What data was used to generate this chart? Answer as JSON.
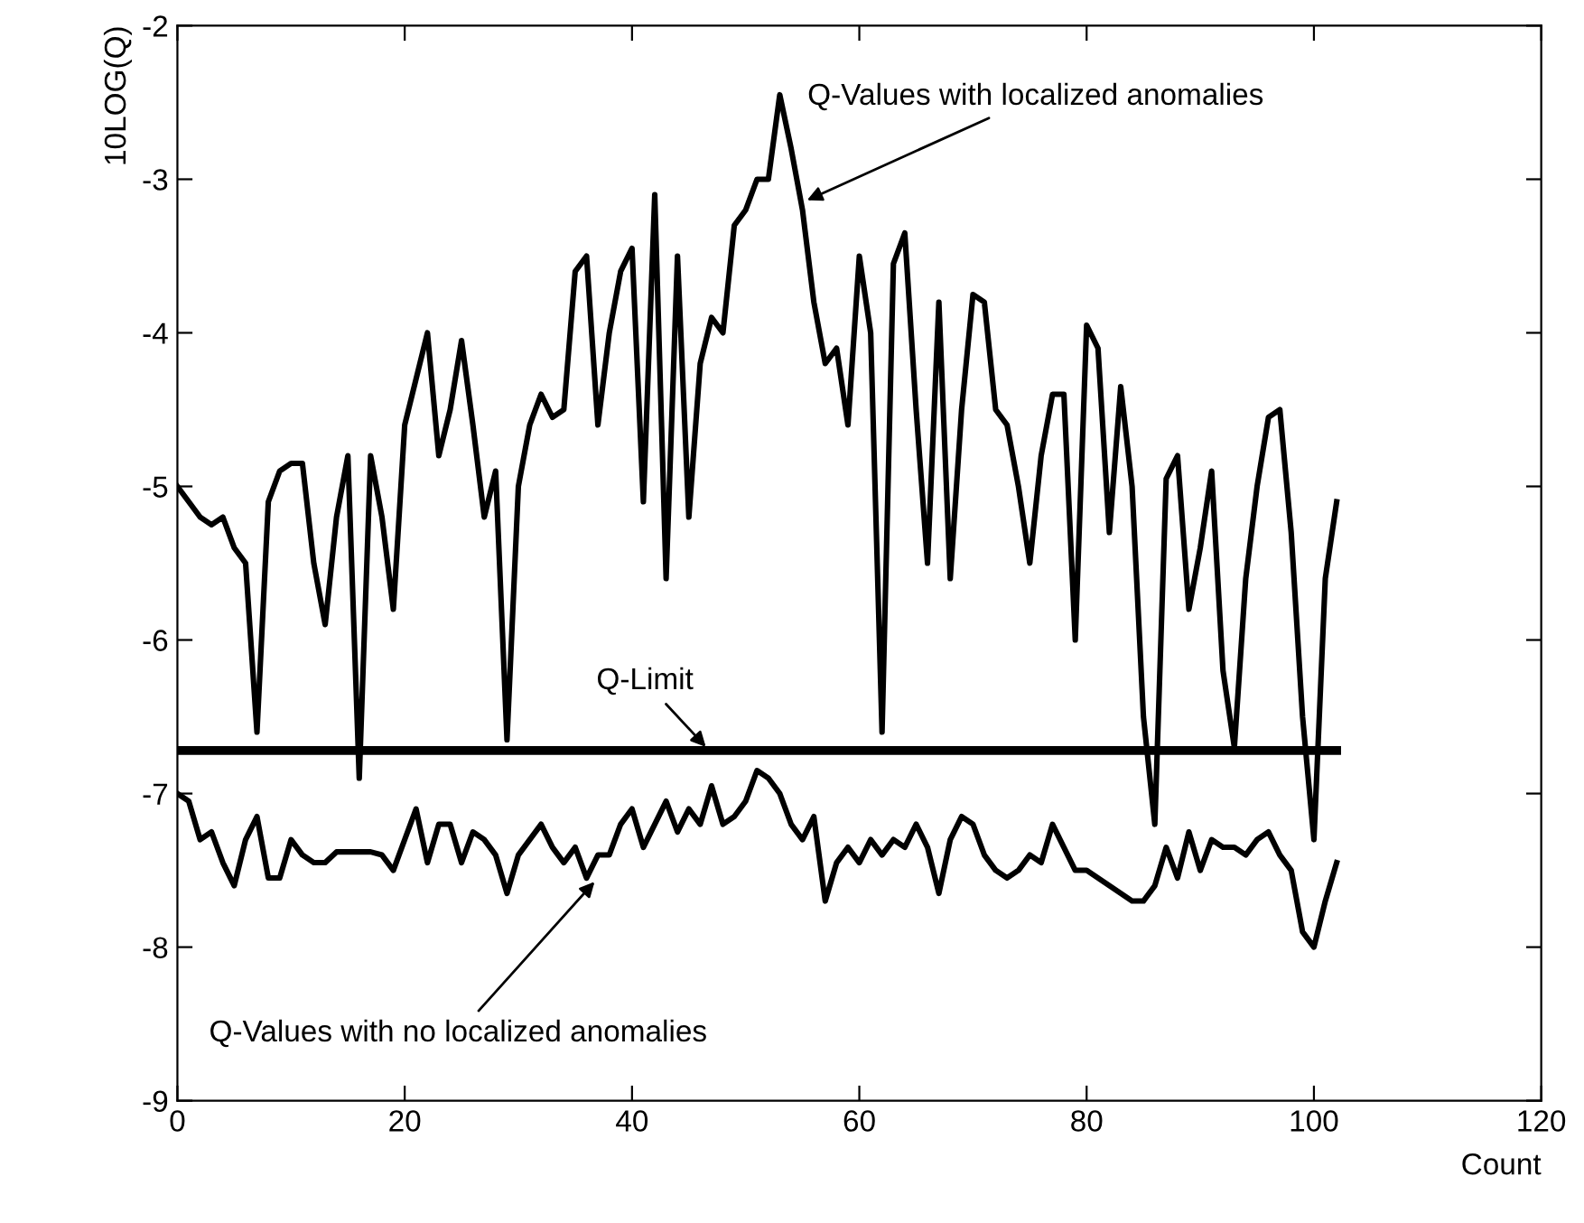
{
  "chart_data": {
    "type": "line",
    "xlabel": "Count",
    "ylabel": "10LOG(Q)",
    "x": [
      0,
      1,
      2,
      3,
      4,
      5,
      6,
      7,
      8,
      9,
      10,
      11,
      12,
      13,
      14,
      15,
      16,
      17,
      18,
      19,
      20,
      21,
      22,
      23,
      24,
      25,
      26,
      27,
      28,
      29,
      30,
      31,
      32,
      33,
      34,
      35,
      36,
      37,
      38,
      39,
      40,
      41,
      42,
      43,
      44,
      45,
      46,
      47,
      48,
      49,
      50,
      51,
      52,
      53,
      54,
      55,
      56,
      57,
      58,
      59,
      60,
      61,
      62,
      63,
      64,
      65,
      66,
      67,
      68,
      69,
      70,
      71,
      72,
      73,
      74,
      75,
      76,
      77,
      78,
      79,
      80,
      81,
      82,
      83,
      84,
      85,
      86,
      87,
      88,
      89,
      90,
      91,
      92,
      93,
      94,
      95,
      96,
      97,
      98,
      99,
      100,
      101,
      102
    ],
    "series": [
      {
        "color": "#000000",
        "values": [
          -5.0,
          -5.1,
          -5.2,
          -5.25,
          -5.2,
          -5.4,
          -5.5,
          -6.6,
          -5.1,
          -4.9,
          -4.85,
          -4.85,
          -5.5,
          -5.9,
          -5.2,
          -4.8,
          -6.9,
          -4.8,
          -5.2,
          -5.8,
          -4.6,
          -4.3,
          -4.0,
          -4.8,
          -4.5,
          -4.05,
          -4.6,
          -5.2,
          -4.9,
          -6.65,
          -5.0,
          -4.6,
          -4.4,
          -4.55,
          -4.5,
          -3.6,
          -3.5,
          -4.6,
          -4.0,
          -3.6,
          -3.45,
          -5.1,
          -3.1,
          -5.6,
          -3.5,
          -5.2,
          -4.2,
          -3.9,
          -4.0,
          -3.3,
          -3.2,
          -3.0,
          -3.0,
          -2.45,
          -2.8,
          -3.2,
          -3.8,
          -4.2,
          -4.1,
          -4.6,
          -3.5,
          -4.0,
          -6.6,
          -3.55,
          -3.35,
          -4.5,
          -5.5,
          -3.8,
          -5.6,
          -4.5,
          -3.75,
          -3.8,
          -4.5,
          -4.6,
          -5.0,
          -5.5,
          -4.8,
          -4.4,
          -4.4,
          -6.0,
          -3.95,
          -4.1,
          -5.3,
          -4.35,
          -5.0,
          -6.5,
          -7.2,
          -4.95,
          -4.8,
          -5.8,
          -5.4,
          -4.9,
          -6.2,
          -6.7,
          -5.6,
          -5.0,
          -4.55,
          -4.5,
          -5.3,
          -6.5,
          -7.3,
          -5.6,
          -5.1
        ]
      },
      {
        "color": "#000000",
        "values": [
          -7.0,
          -7.05,
          -7.3,
          -7.25,
          -7.45,
          -7.6,
          -7.3,
          -7.15,
          -7.55,
          -7.55,
          -7.3,
          -7.4,
          -7.45,
          -7.45,
          -7.38,
          -7.38,
          -7.38,
          -7.38,
          -7.4,
          -7.5,
          -7.3,
          -7.1,
          -7.45,
          -7.2,
          -7.2,
          -7.45,
          -7.25,
          -7.3,
          -7.4,
          -7.65,
          -7.4,
          -7.3,
          -7.2,
          -7.35,
          -7.45,
          -7.35,
          -7.55,
          -7.4,
          -7.4,
          -7.2,
          -7.1,
          -7.35,
          -7.2,
          -7.05,
          -7.25,
          -7.1,
          -7.2,
          -6.95,
          -7.2,
          -7.15,
          -7.05,
          -6.85,
          -6.9,
          -7.0,
          -7.2,
          -7.3,
          -7.15,
          -7.7,
          -7.45,
          -7.35,
          -7.45,
          -7.3,
          -7.4,
          -7.3,
          -7.35,
          -7.2,
          -7.35,
          -7.65,
          -7.3,
          -7.15,
          -7.2,
          -7.4,
          -7.5,
          -7.55,
          -7.5,
          -7.4,
          -7.45,
          -7.2,
          -7.35,
          -7.5,
          -7.5,
          -7.55,
          -7.6,
          -7.65,
          -7.7,
          -7.7,
          -7.6,
          -7.35,
          -7.55,
          -7.25,
          -7.5,
          -7.3,
          -7.35,
          -7.35,
          -7.4,
          -7.3,
          -7.25,
          -7.4,
          -7.5,
          -7.9,
          -8.0,
          -7.7,
          -7.45
        ]
      }
    ],
    "ref_lines": [
      {
        "axis": "y",
        "value": -6.72,
        "label": "Q-Limit",
        "color": "#000000"
      }
    ],
    "annotations": [
      {
        "text": "Q-Values with localized anomalies",
        "x": 55,
        "y": -3.15
      },
      {
        "text": "Q-Values with no localized anomalies",
        "x": 37,
        "y": -7.55
      }
    ],
    "xlim": [
      0,
      120
    ],
    "xticks": [
      0,
      20,
      40,
      60,
      80,
      100,
      120
    ],
    "ylim": [
      -9,
      -2
    ],
    "yticks": [
      -9,
      -8,
      -7,
      -6,
      -5,
      -4,
      -3,
      -2
    ],
    "grid": false,
    "legend": false
  }
}
